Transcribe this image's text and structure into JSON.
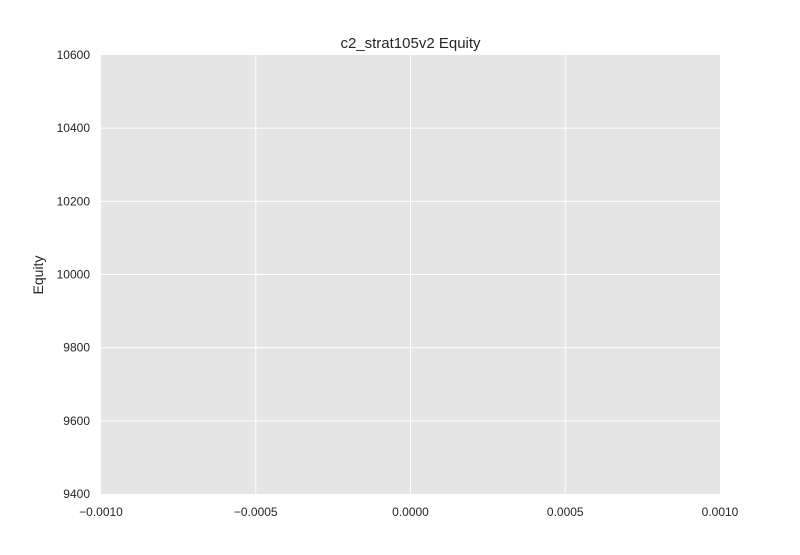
{
  "chart_data": {
    "type": "line",
    "title": "c2_strat105v2 Equity",
    "xlabel": "",
    "ylabel": "Equity",
    "xlim": [
      -0.001,
      0.001
    ],
    "ylim": [
      9400,
      10600
    ],
    "x_ticks": [
      -0.001,
      -0.0005,
      0.0,
      0.0005,
      0.001
    ],
    "x_tick_labels": [
      "−0.0010",
      "−0.0005",
      "0.0000",
      "0.0005",
      "0.0010"
    ],
    "y_ticks": [
      9400,
      9600,
      9800,
      10000,
      10200,
      10400,
      10600
    ],
    "y_tick_labels": [
      "9400",
      "9600",
      "9800",
      "10000",
      "10200",
      "10400",
      "10600"
    ],
    "grid": true,
    "series": [
      {
        "x": [],
        "y": []
      }
    ],
    "colors": {
      "plot_background": "#e5e5e5",
      "grid": "#ffffff",
      "text": "#262626"
    }
  }
}
